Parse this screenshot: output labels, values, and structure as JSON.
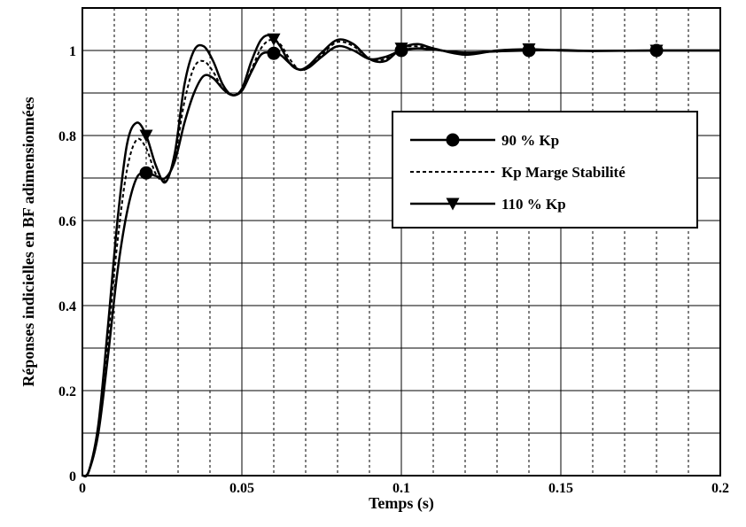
{
  "chart_data": {
    "type": "line",
    "title": "",
    "xlabel": "Temps (s)",
    "ylabel": "Réponses indicielles en BF adimensionnées",
    "xlim": [
      0,
      0.2
    ],
    "ylim": [
      0,
      1.1
    ],
    "x_ticks": [
      0,
      0.05,
      0.1,
      0.15,
      0.2
    ],
    "x_tick_labels": [
      "0",
      "0.05",
      "0.1",
      "0.15",
      "0.2"
    ],
    "y_ticks": [
      0,
      0.2,
      0.4,
      0.6,
      0.8,
      1
    ],
    "y_tick_labels": [
      "0",
      "0.2",
      "0.4",
      "0.6",
      "0.8",
      "1"
    ],
    "x_minor_grid": [
      0.01,
      0.02,
      0.03,
      0.04,
      0.06,
      0.07,
      0.08,
      0.09,
      0.11,
      0.12,
      0.13,
      0.14,
      0.16,
      0.17,
      0.18,
      0.19
    ],
    "y_minor_grid": [
      0.1,
      0.3,
      0.5,
      0.7,
      0.9
    ],
    "grid": true,
    "legend_position": "center-right",
    "series": [
      {
        "name": "90 % Kp",
        "line_style": "solid",
        "marker": "circle",
        "marker_x": [
          0.02,
          0.06,
          0.1,
          0.14,
          0.18
        ],
        "x": [
          0,
          0.002,
          0.005,
          0.008,
          0.011,
          0.014,
          0.017,
          0.02,
          0.023,
          0.026,
          0.029,
          0.032,
          0.035,
          0.038,
          0.041,
          0.044,
          0.047,
          0.05,
          0.053,
          0.056,
          0.059,
          0.062,
          0.065,
          0.068,
          0.071,
          0.075,
          0.08,
          0.085,
          0.09,
          0.095,
          0.1,
          0.105,
          0.11,
          0.12,
          0.13,
          0.14,
          0.15,
          0.16,
          0.18,
          0.2
        ],
        "y": [
          0,
          0.01,
          0.1,
          0.28,
          0.48,
          0.62,
          0.7,
          0.712,
          0.705,
          0.7,
          0.74,
          0.83,
          0.9,
          0.94,
          0.935,
          0.91,
          0.895,
          0.905,
          0.95,
          0.99,
          0.995,
          0.99,
          0.97,
          0.955,
          0.96,
          0.985,
          1.01,
          1.0,
          0.98,
          0.985,
          1.0,
          1.005,
          1.002,
          0.995,
          0.998,
          1.0,
          1.001,
          0.999,
          1.0,
          1.0
        ]
      },
      {
        "name": "Kp Marge Stabilité",
        "line_style": "dashed",
        "marker": "none",
        "x": [
          0,
          0.002,
          0.005,
          0.008,
          0.011,
          0.014,
          0.017,
          0.02,
          0.023,
          0.026,
          0.029,
          0.032,
          0.035,
          0.038,
          0.041,
          0.044,
          0.047,
          0.05,
          0.053,
          0.056,
          0.059,
          0.062,
          0.065,
          0.068,
          0.071,
          0.075,
          0.08,
          0.085,
          0.09,
          0.095,
          0.1,
          0.105,
          0.11,
          0.12,
          0.13,
          0.14,
          0.15,
          0.16,
          0.18,
          0.2
        ],
        "y": [
          0,
          0.01,
          0.11,
          0.32,
          0.55,
          0.72,
          0.79,
          0.77,
          0.71,
          0.695,
          0.75,
          0.88,
          0.96,
          0.975,
          0.95,
          0.91,
          0.895,
          0.905,
          0.955,
          1.005,
          1.025,
          1.015,
          0.98,
          0.955,
          0.96,
          0.99,
          1.02,
          1.01,
          0.98,
          0.98,
          1.005,
          1.01,
          1.003,
          0.993,
          1.0,
          1.002,
          1.0,
          0.999,
          1.0,
          1.0
        ]
      },
      {
        "name": "110 % Kp",
        "line_style": "solid",
        "marker": "triangle-down",
        "marker_x": [
          0.02,
          0.06,
          0.1,
          0.14,
          0.18
        ],
        "x": [
          0,
          0.002,
          0.005,
          0.008,
          0.011,
          0.014,
          0.017,
          0.02,
          0.023,
          0.026,
          0.029,
          0.032,
          0.035,
          0.038,
          0.041,
          0.044,
          0.047,
          0.05,
          0.053,
          0.056,
          0.059,
          0.062,
          0.065,
          0.068,
          0.071,
          0.075,
          0.08,
          0.085,
          0.09,
          0.095,
          0.1,
          0.105,
          0.11,
          0.12,
          0.13,
          0.14,
          0.15,
          0.16,
          0.18,
          0.2
        ],
        "y": [
          0,
          0.01,
          0.12,
          0.35,
          0.6,
          0.78,
          0.83,
          0.8,
          0.73,
          0.69,
          0.76,
          0.92,
          1.0,
          1.01,
          0.975,
          0.92,
          0.895,
          0.91,
          0.975,
          1.025,
          1.035,
          1.01,
          0.97,
          0.955,
          0.965,
          0.995,
          1.025,
          1.015,
          0.98,
          0.975,
          1.005,
          1.015,
          1.005,
          0.99,
          1.0,
          1.003,
          1.0,
          0.999,
          1.0,
          1.0
        ]
      }
    ]
  }
}
